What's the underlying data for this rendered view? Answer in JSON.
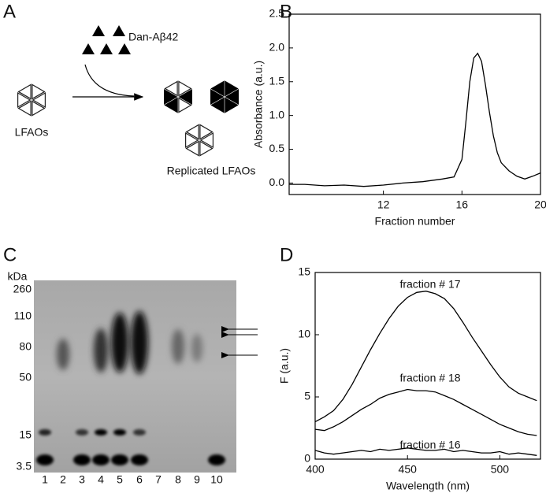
{
  "panel_labels": [
    "A",
    "B",
    "C",
    "D"
  ],
  "diagram": {
    "reagent": "Dan-Aβ42",
    "input": "LFAOs",
    "output": "Replicated LFAOs"
  },
  "gel": {
    "unit": "kDa",
    "markers": [
      "260",
      "110",
      "80",
      "50",
      "15",
      "3.5"
    ],
    "lanes": [
      "1",
      "2",
      "3",
      "4",
      "5",
      "6",
      "7",
      "8",
      "9",
      "10"
    ]
  },
  "chart_data": [
    {
      "type": "line",
      "x_label": "Fraction number",
      "y_label": "Absorbance (a.u.)",
      "x": [
        7.2,
        8,
        9,
        10,
        11,
        12,
        13,
        14,
        15,
        15.6,
        16,
        16.2,
        16.4,
        16.6,
        16.8,
        17,
        17.2,
        17.4,
        17.6,
        17.8,
        18,
        18.4,
        18.8,
        19.2,
        19.6,
        20
      ],
      "series": [
        {
          "color": "#000000",
          "values": [
            -0.02,
            -0.02,
            -0.04,
            -0.03,
            -0.05,
            -0.03,
            0.0,
            0.02,
            0.06,
            0.09,
            0.35,
            0.9,
            1.5,
            1.85,
            1.92,
            1.8,
            1.45,
            1.05,
            0.7,
            0.45,
            0.3,
            0.18,
            0.1,
            0.06,
            0.1,
            0.15
          ]
        }
      ],
      "xlim": [
        7.2,
        20
      ],
      "ylim": [
        -0.17,
        2.5
      ],
      "xticks": [
        12,
        16,
        20
      ],
      "yticks": [
        {
          "value": 0,
          "label": "0.0"
        },
        0.5,
        {
          "value": 1,
          "label": "1.0"
        },
        1.5,
        {
          "value": 2,
          "label": "2.0"
        },
        2.5
      ]
    },
    {
      "type": "line",
      "x_label": "Wavelength (nm)",
      "y_label": "F (a.u.)",
      "x": [
        400,
        405,
        410,
        415,
        420,
        425,
        430,
        435,
        440,
        445,
        450,
        455,
        460,
        465,
        470,
        475,
        480,
        485,
        490,
        495,
        500,
        505,
        510,
        515,
        520
      ],
      "series": [
        {
          "name": "fraction # 17",
          "color": "#000000",
          "values": [
            3.0,
            3.4,
            3.9,
            4.8,
            6.0,
            7.4,
            8.8,
            10.1,
            11.3,
            12.3,
            13.0,
            13.4,
            13.5,
            13.3,
            12.9,
            12.1,
            11.0,
            9.8,
            8.7,
            7.6,
            6.6,
            5.8,
            5.3,
            5.0,
            4.7
          ]
        },
        {
          "name": "fraction # 18",
          "color": "#000000",
          "values": [
            2.4,
            2.3,
            2.6,
            3.0,
            3.5,
            4.0,
            4.4,
            4.9,
            5.2,
            5.4,
            5.6,
            5.5,
            5.5,
            5.4,
            5.1,
            4.8,
            4.4,
            4.0,
            3.6,
            3.2,
            2.8,
            2.5,
            2.2,
            2.0,
            1.9
          ]
        },
        {
          "name": "fraction # 16",
          "color": "#000000",
          "values": [
            0.7,
            0.5,
            0.4,
            0.5,
            0.6,
            0.7,
            0.6,
            0.8,
            0.7,
            0.8,
            0.9,
            0.8,
            0.7,
            0.7,
            0.8,
            0.6,
            0.7,
            0.6,
            0.5,
            0.5,
            0.6,
            0.4,
            0.5,
            0.4,
            0.3
          ]
        }
      ],
      "xlim": [
        400,
        522
      ],
      "ylim": [
        0,
        15
      ],
      "xticks": [
        400,
        450,
        500
      ],
      "yticks": [
        0,
        5,
        10,
        15
      ]
    }
  ]
}
